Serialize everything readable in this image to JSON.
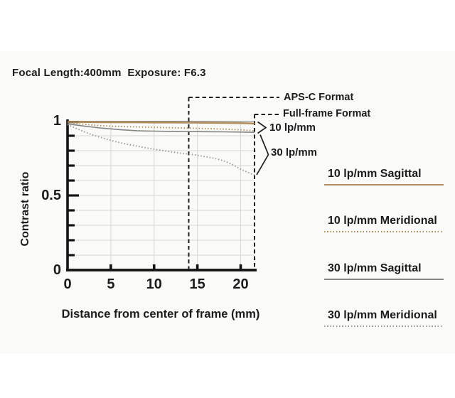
{
  "title": "Focal Length:400mm  Exposure: F6.3",
  "colors": {
    "tan": "#b18d5d",
    "gray_solid": "#848484",
    "gray_dotted": "#989898",
    "axis": "#141414",
    "grid": "#d7d7d2",
    "dashed_annotation": "#1f1f1f",
    "text": "#1c1c1c",
    "panel_background": "#fafaf8"
  },
  "chart_data": {
    "type": "line",
    "title": "Focal Length:400mm  Exposure: F6.3",
    "xlabel": "Distance from center of frame (mm)",
    "ylabel": "Contrast ratio",
    "xlim": [
      0,
      21.6
    ],
    "ylim": [
      0,
      1
    ],
    "x_ticks": [
      0,
      5,
      10,
      15,
      20
    ],
    "x_tick_labels": [
      "0",
      "5",
      "10",
      "15",
      "20"
    ],
    "y_major_ticks": [
      0,
      0.5,
      1
    ],
    "y_tick_labels": [
      "0",
      "0.5",
      "1"
    ],
    "y_minor_tick_step": 0.1,
    "grid": true,
    "legend_position": "right",
    "series": [
      {
        "name": "10 lp/mm Sagittal",
        "style": "solid",
        "color": "#b18d5d",
        "points": [
          [
            0,
            0.993
          ],
          [
            2,
            0.992
          ],
          [
            4,
            0.991
          ],
          [
            6,
            0.99
          ],
          [
            8,
            0.99
          ],
          [
            10,
            0.989
          ],
          [
            12,
            0.989
          ],
          [
            14,
            0.988
          ],
          [
            16,
            0.987
          ],
          [
            18,
            0.986
          ],
          [
            20,
            0.985
          ],
          [
            21.6,
            0.982
          ]
        ]
      },
      {
        "name": "10 lp/mm Meridional",
        "style": "dotted",
        "color": "#b18d5d",
        "points": [
          [
            0,
            0.99
          ],
          [
            1,
            0.983
          ],
          [
            2,
            0.976
          ],
          [
            3,
            0.971
          ],
          [
            4,
            0.967
          ],
          [
            5,
            0.964
          ],
          [
            6,
            0.962
          ],
          [
            8,
            0.959
          ],
          [
            10,
            0.956
          ],
          [
            12,
            0.954
          ],
          [
            14,
            0.951
          ],
          [
            16,
            0.948
          ],
          [
            18,
            0.945
          ],
          [
            20,
            0.94
          ],
          [
            21,
            0.936
          ],
          [
            21.6,
            0.932
          ]
        ]
      },
      {
        "name": "30 lp/mm Sagittal",
        "style": "solid",
        "color": "#848484",
        "points": [
          [
            0,
            0.98
          ],
          [
            1,
            0.972
          ],
          [
            2,
            0.964
          ],
          [
            3,
            0.957
          ],
          [
            4,
            0.951
          ],
          [
            5,
            0.946
          ],
          [
            6,
            0.941
          ],
          [
            7,
            0.937
          ],
          [
            8,
            0.934
          ],
          [
            9,
            0.932
          ],
          [
            10,
            0.931
          ],
          [
            12,
            0.929
          ],
          [
            14,
            0.928
          ],
          [
            16,
            0.927
          ],
          [
            18,
            0.926
          ],
          [
            20,
            0.925
          ],
          [
            21.6,
            0.923
          ]
        ]
      },
      {
        "name": "30 lp/mm Meridional",
        "style": "dotted",
        "color": "#989898",
        "points": [
          [
            0,
            0.975
          ],
          [
            1,
            0.949
          ],
          [
            2,
            0.925
          ],
          [
            3,
            0.904
          ],
          [
            4,
            0.886
          ],
          [
            5,
            0.869
          ],
          [
            6,
            0.854
          ],
          [
            7,
            0.842
          ],
          [
            8,
            0.831
          ],
          [
            9,
            0.82
          ],
          [
            10,
            0.81
          ],
          [
            11,
            0.801
          ],
          [
            12,
            0.792
          ],
          [
            13,
            0.784
          ],
          [
            14,
            0.777
          ],
          [
            15,
            0.769
          ],
          [
            16,
            0.759
          ],
          [
            17,
            0.748
          ],
          [
            18,
            0.733
          ],
          [
            19,
            0.709
          ],
          [
            20,
            0.676
          ],
          [
            21,
            0.65
          ],
          [
            21.6,
            0.637
          ]
        ]
      }
    ],
    "annotations": {
      "apsc": {
        "label": "APS-C Format",
        "x": 14
      },
      "fullframe": {
        "label": "Full-frame Format",
        "x": 21.6
      },
      "freq_labels": [
        {
          "label": "10 lp/mm"
        },
        {
          "label": "30 lp/mm"
        }
      ]
    }
  },
  "legend": {
    "items": [
      {
        "label": "10 lp/mm Sagittal",
        "style": "solid",
        "color": "#b18d5d"
      },
      {
        "label": "10 lp/mm Meridional",
        "style": "dotted",
        "color": "#b18d5d"
      },
      {
        "label": "30 lp/mm Sagittal",
        "style": "solid",
        "color": "#848484"
      },
      {
        "label": "30 lp/mm Meridional",
        "style": "dotted",
        "color": "#989898"
      }
    ]
  }
}
